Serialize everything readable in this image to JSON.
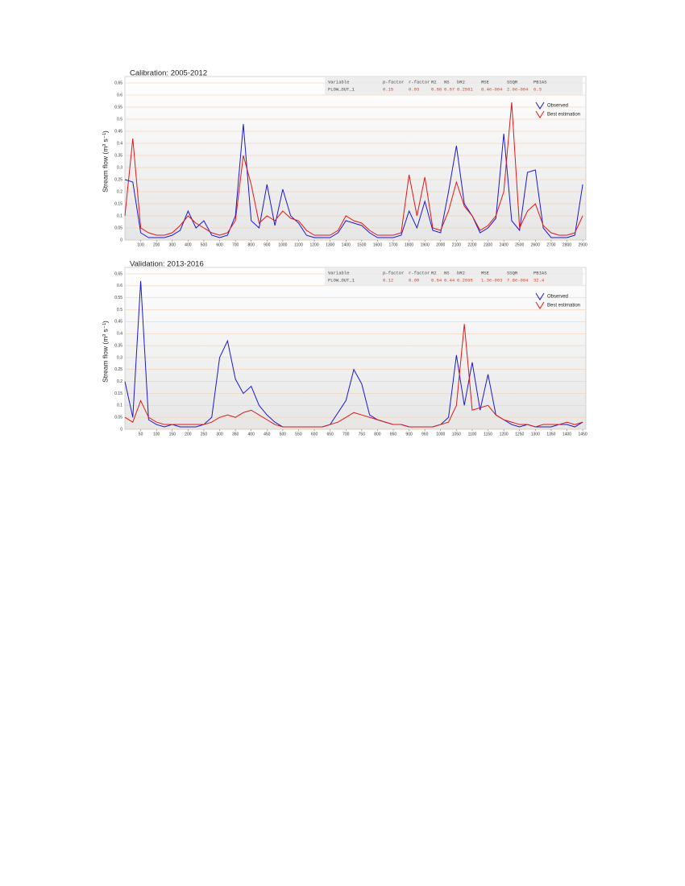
{
  "chart_data": [
    {
      "type": "line",
      "title": "Calibration: 2005-2012",
      "y_label": "Stream flow (m³ s⁻¹)",
      "legend": "upper right",
      "grid": true,
      "xlim": [
        0,
        2920
      ],
      "ylim": [
        0,
        0.65
      ],
      "xticks": [
        100,
        200,
        300,
        400,
        500,
        600,
        700,
        800,
        900,
        1000,
        1100,
        1200,
        1300,
        1400,
        1500,
        1600,
        1700,
        1800,
        1900,
        2000,
        2100,
        2200,
        2300,
        2400,
        2500,
        2600,
        2700,
        2800,
        2900
      ],
      "yticks": [
        0,
        0.05,
        0.1,
        0.15,
        0.2,
        0.25,
        0.3,
        0.35,
        0.4,
        0.45,
        0.5,
        0.55,
        0.6,
        0.65
      ],
      "x": [
        0,
        50,
        100,
        150,
        200,
        250,
        300,
        350,
        400,
        450,
        500,
        550,
        600,
        650,
        700,
        750,
        800,
        850,
        900,
        950,
        1000,
        1050,
        1100,
        1150,
        1200,
        1250,
        1300,
        1350,
        1400,
        1450,
        1500,
        1550,
        1600,
        1650,
        1700,
        1750,
        1800,
        1850,
        1900,
        1950,
        2000,
        2050,
        2100,
        2150,
        2200,
        2250,
        2300,
        2350,
        2400,
        2450,
        2500,
        2550,
        2600,
        2650,
        2700,
        2750,
        2800,
        2850,
        2900
      ],
      "series": [
        {
          "name": "Observed",
          "color": "#1a1ad0",
          "values": [
            0.25,
            0.24,
            0.03,
            0.01,
            0.01,
            0.01,
            0.02,
            0.04,
            0.12,
            0.05,
            0.08,
            0.02,
            0.01,
            0.02,
            0.1,
            0.48,
            0.08,
            0.05,
            0.23,
            0.06,
            0.21,
            0.1,
            0.07,
            0.02,
            0.01,
            0.01,
            0.01,
            0.03,
            0.08,
            0.07,
            0.06,
            0.03,
            0.01,
            0.01,
            0.01,
            0.02,
            0.12,
            0.05,
            0.16,
            0.04,
            0.03,
            0.2,
            0.39,
            0.15,
            0.1,
            0.03,
            0.05,
            0.09,
            0.44,
            0.08,
            0.04,
            0.28,
            0.29,
            0.05,
            0.01,
            0.01,
            0.01,
            0.02,
            0.23
          ]
        },
        {
          "name": "Best estimation",
          "color": "#e01818",
          "values": [
            0.1,
            0.42,
            0.05,
            0.03,
            0.02,
            0.02,
            0.03,
            0.06,
            0.1,
            0.07,
            0.05,
            0.03,
            0.02,
            0.03,
            0.08,
            0.35,
            0.23,
            0.07,
            0.1,
            0.08,
            0.12,
            0.09,
            0.08,
            0.04,
            0.02,
            0.02,
            0.02,
            0.04,
            0.1,
            0.08,
            0.07,
            0.04,
            0.02,
            0.02,
            0.02,
            0.03,
            0.27,
            0.1,
            0.26,
            0.05,
            0.04,
            0.12,
            0.24,
            0.14,
            0.1,
            0.04,
            0.06,
            0.1,
            0.2,
            0.57,
            0.05,
            0.12,
            0.15,
            0.06,
            0.03,
            0.02,
            0.02,
            0.03,
            0.1
          ]
        }
      ],
      "stats": {
        "header": [
          "Variable",
          "p-factor",
          "r-factor",
          "R2",
          "NS",
          "bR2",
          "MSE",
          "SSQR",
          "PBIAS"
        ],
        "rows": [
          [
            "FLOW_OUT_1",
            "0.15",
            "0.03",
            "0.58",
            "0.57",
            "0.2561",
            "8.4e-004",
            "2.6e-004",
            "6.3"
          ]
        ]
      }
    },
    {
      "type": "line",
      "title": "Validation: 2013-2016",
      "y_label": "Stream flow (m³ s⁻¹)",
      "legend": "upper right",
      "grid": true,
      "xlim": [
        0,
        1460
      ],
      "ylim": [
        0,
        0.65
      ],
      "xticks": [
        50,
        100,
        150,
        200,
        250,
        300,
        350,
        400,
        450,
        500,
        550,
        600,
        650,
        700,
        750,
        800,
        850,
        900,
        950,
        1000,
        1050,
        1100,
        1150,
        1200,
        1250,
        1300,
        1350,
        1400,
        1450
      ],
      "yticks": [
        0,
        0.05,
        0.1,
        0.15,
        0.2,
        0.25,
        0.3,
        0.35,
        0.4,
        0.45,
        0.5,
        0.55,
        0.6,
        0.65
      ],
      "x": [
        0,
        25,
        50,
        75,
        100,
        125,
        150,
        175,
        200,
        225,
        250,
        275,
        300,
        325,
        350,
        375,
        400,
        425,
        450,
        475,
        500,
        525,
        550,
        575,
        600,
        625,
        650,
        675,
        700,
        725,
        750,
        775,
        800,
        825,
        850,
        875,
        900,
        925,
        950,
        975,
        1000,
        1025,
        1050,
        1075,
        1100,
        1125,
        1150,
        1175,
        1200,
        1225,
        1250,
        1275,
        1300,
        1325,
        1350,
        1375,
        1400,
        1425,
        1450
      ],
      "series": [
        {
          "name": "Observed",
          "color": "#1a1ad0",
          "values": [
            0.2,
            0.05,
            0.62,
            0.04,
            0.02,
            0.01,
            0.02,
            0.01,
            0.01,
            0.01,
            0.02,
            0.05,
            0.3,
            0.37,
            0.21,
            0.15,
            0.18,
            0.1,
            0.06,
            0.03,
            0.01,
            0.01,
            0.01,
            0.01,
            0.01,
            0.01,
            0.02,
            0.07,
            0.12,
            0.25,
            0.19,
            0.06,
            0.04,
            0.03,
            0.02,
            0.02,
            0.01,
            0.01,
            0.01,
            0.01,
            0.02,
            0.05,
            0.31,
            0.1,
            0.28,
            0.08,
            0.23,
            0.06,
            0.04,
            0.02,
            0.01,
            0.02,
            0.01,
            0.01,
            0.01,
            0.02,
            0.02,
            0.01,
            0.03
          ]
        },
        {
          "name": "Best estimation",
          "color": "#e01818",
          "values": [
            0.05,
            0.03,
            0.12,
            0.05,
            0.03,
            0.02,
            0.02,
            0.02,
            0.02,
            0.02,
            0.02,
            0.03,
            0.05,
            0.06,
            0.05,
            0.07,
            0.08,
            0.06,
            0.04,
            0.02,
            0.01,
            0.01,
            0.01,
            0.01,
            0.01,
            0.01,
            0.02,
            0.03,
            0.05,
            0.07,
            0.06,
            0.05,
            0.04,
            0.03,
            0.02,
            0.02,
            0.01,
            0.01,
            0.01,
            0.01,
            0.02,
            0.03,
            0.1,
            0.44,
            0.08,
            0.09,
            0.1,
            0.06,
            0.04,
            0.03,
            0.02,
            0.02,
            0.01,
            0.02,
            0.02,
            0.02,
            0.03,
            0.02,
            0.03
          ]
        }
      ],
      "stats": {
        "header": [
          "Variable",
          "p-factor",
          "r-factor",
          "R2",
          "NS",
          "bR2",
          "MSE",
          "SSQR",
          "PBIAS"
        ],
        "rows": [
          [
            "FLOW_OUT_1",
            "0.12",
            "0.00",
            "0.54",
            "0.44",
            "0.2095",
            "1.3e-003",
            "7.8e-004",
            "32.4"
          ]
        ]
      }
    }
  ]
}
